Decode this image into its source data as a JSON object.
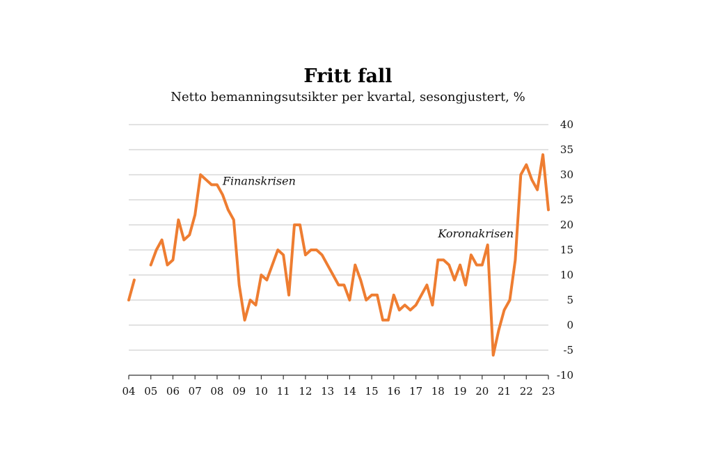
{
  "chart_data": {
    "type": "line",
    "title": "Fritt fall",
    "subtitle": "Netto bemanningsutsikter per kvartal, sesongjustert, %",
    "xlabel": "",
    "ylabel": "",
    "ylim": [
      -10,
      40
    ],
    "y_ticks": [
      "40",
      "35",
      "30",
      "25",
      "20",
      "15",
      "10",
      "5",
      "0",
      "-5",
      "-10"
    ],
    "x_ticks": [
      "04",
      "05",
      "06",
      "07",
      "08",
      "09",
      "10",
      "11",
      "12",
      "13",
      "14",
      "15",
      "16",
      "17",
      "18",
      "19",
      "20",
      "21",
      "22",
      "23"
    ],
    "grid": true,
    "series": [
      {
        "color": "#ee7d31",
        "segments": [
          [
            [
              2004.0,
              5
            ],
            [
              2004.25,
              9
            ]
          ],
          [
            [
              2005.0,
              12
            ],
            [
              2005.25,
              15
            ],
            [
              2005.5,
              17
            ],
            [
              2005.75,
              12
            ],
            [
              2006.0,
              13
            ],
            [
              2006.25,
              21
            ],
            [
              2006.5,
              17
            ],
            [
              2006.75,
              18
            ],
            [
              2007.0,
              22
            ],
            [
              2007.25,
              30
            ],
            [
              2007.5,
              29
            ],
            [
              2007.75,
              28
            ],
            [
              2008.0,
              28
            ],
            [
              2008.25,
              26
            ],
            [
              2008.5,
              23
            ],
            [
              2008.75,
              21
            ],
            [
              2009.0,
              8
            ],
            [
              2009.25,
              1
            ],
            [
              2009.5,
              5
            ],
            [
              2009.75,
              4
            ],
            [
              2010.0,
              10
            ],
            [
              2010.25,
              9
            ],
            [
              2010.5,
              12
            ],
            [
              2010.75,
              15
            ],
            [
              2011.0,
              14
            ],
            [
              2011.25,
              6
            ],
            [
              2011.5,
              20
            ],
            [
              2011.75,
              20
            ],
            [
              2012.0,
              14
            ],
            [
              2012.25,
              15
            ],
            [
              2012.5,
              15
            ],
            [
              2012.75,
              14
            ],
            [
              2013.0,
              12
            ],
            [
              2013.25,
              10
            ],
            [
              2013.5,
              8
            ],
            [
              2013.75,
              8
            ],
            [
              2014.0,
              5
            ],
            [
              2014.25,
              12
            ],
            [
              2014.5,
              9
            ],
            [
              2014.75,
              5
            ],
            [
              2015.0,
              6
            ],
            [
              2015.25,
              6
            ],
            [
              2015.5,
              1
            ],
            [
              2015.75,
              1
            ],
            [
              2016.0,
              6
            ],
            [
              2016.25,
              3
            ],
            [
              2016.5,
              4
            ],
            [
              2016.75,
              3
            ],
            [
              2017.0,
              4
            ],
            [
              2017.25,
              6
            ],
            [
              2017.5,
              8
            ],
            [
              2017.75,
              4
            ],
            [
              2018.0,
              13
            ],
            [
              2018.25,
              13
            ],
            [
              2018.5,
              12
            ],
            [
              2018.75,
              9
            ],
            [
              2019.0,
              12
            ],
            [
              2019.25,
              8
            ],
            [
              2019.5,
              14
            ],
            [
              2019.75,
              12
            ],
            [
              2020.0,
              12
            ],
            [
              2020.25,
              16
            ],
            [
              2020.5,
              -6
            ],
            [
              2020.75,
              -1
            ],
            [
              2021.0,
              3
            ],
            [
              2021.25,
              5
            ],
            [
              2021.5,
              13
            ],
            [
              2021.75,
              30
            ],
            [
              2022.0,
              32
            ],
            [
              2022.25,
              29
            ],
            [
              2022.5,
              27
            ],
            [
              2022.75,
              34
            ],
            [
              2023.0,
              23
            ]
          ]
        ]
      }
    ],
    "annotations": [
      {
        "text": "Finanskrisen",
        "x": 2008.25,
        "y": 28
      },
      {
        "text": "Koronakrisen",
        "x": 2018.0,
        "y": 17.5
      }
    ]
  }
}
